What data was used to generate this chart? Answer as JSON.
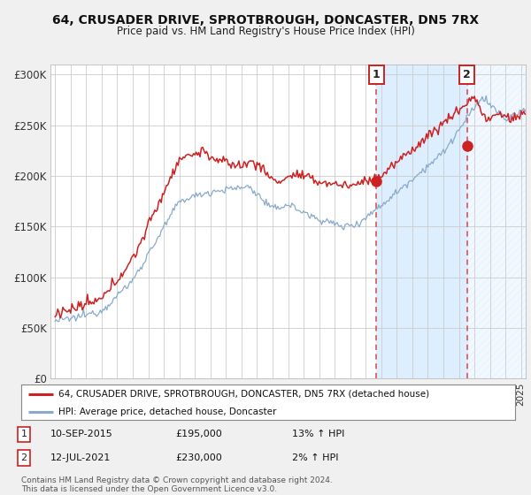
{
  "title": "64, CRUSADER DRIVE, SPROTBROUGH, DONCASTER, DN5 7RX",
  "subtitle": "Price paid vs. HM Land Registry's House Price Index (HPI)",
  "legend_line1": "64, CRUSADER DRIVE, SPROTBROUGH, DONCASTER, DN5 7RX (detached house)",
  "legend_line2": "HPI: Average price, detached house, Doncaster",
  "annotation1_date": "10-SEP-2015",
  "annotation1_price": "£195,000",
  "annotation1_hpi": "13% ↑ HPI",
  "annotation2_date": "12-JUL-2021",
  "annotation2_price": "£230,000",
  "annotation2_hpi": "2% ↑ HPI",
  "purchase1_x": 2015.69,
  "purchase1_y": 195000,
  "purchase2_x": 2021.53,
  "purchase2_y": 230000,
  "ylim": [
    0,
    310000
  ],
  "xlim": [
    1994.7,
    2025.3
  ],
  "yticks": [
    0,
    50000,
    100000,
    150000,
    200000,
    250000,
    300000
  ],
  "ytick_labels": [
    "£0",
    "£50K",
    "£100K",
    "£150K",
    "£200K",
    "£250K",
    "£300K"
  ],
  "fig_bg_color": "#f0f0f0",
  "plot_bg_color": "#ffffff",
  "shaded_region_color": "#ddeeff",
  "grid_color": "#cccccc",
  "hpi_line_color": "#88aacc",
  "price_line_color": "#cc2222",
  "dashed_line_color": "#dd4444",
  "footnote": "Contains HM Land Registry data © Crown copyright and database right 2024.\nThis data is licensed under the Open Government Licence v3.0."
}
